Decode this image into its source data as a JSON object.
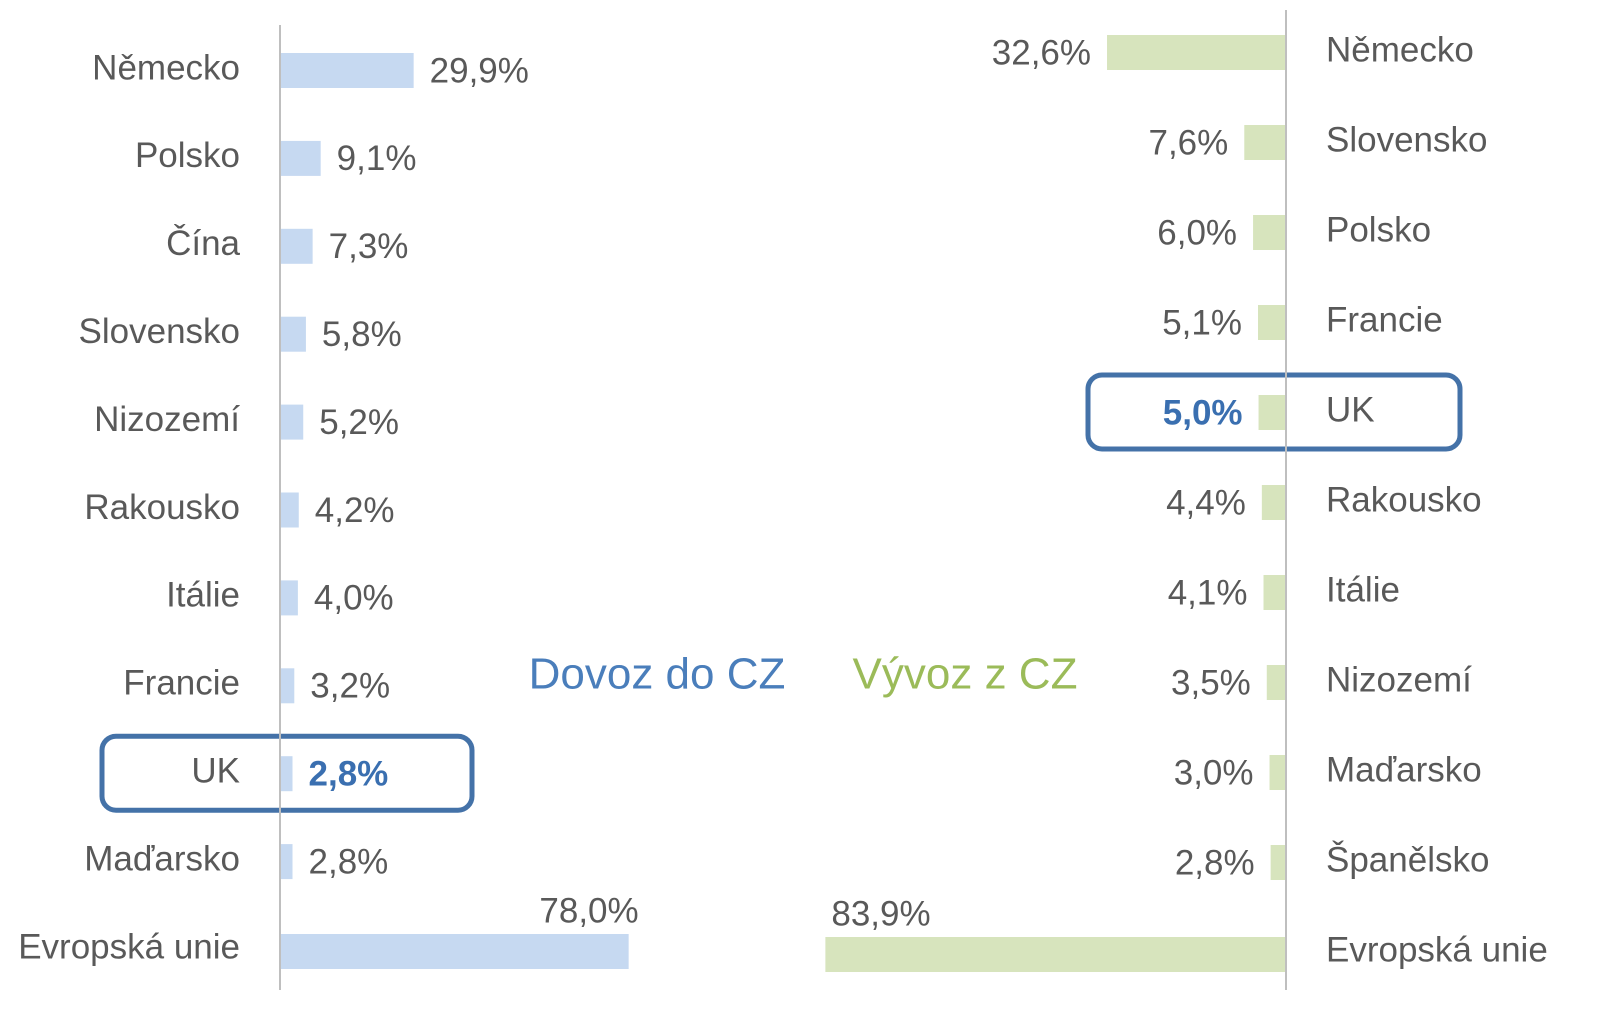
{
  "chart_data": [
    {
      "type": "bar",
      "orientation": "horizontal",
      "title": "Dovoz do CZ",
      "color": "#c6d9f1",
      "title_color": "#4a7ebb",
      "categories": [
        "Německo",
        "Polsko",
        "Čína",
        "Slovensko",
        "Nizozemí",
        "Rakousko",
        "Itálie",
        "Francie",
        "UK",
        "Maďarsko",
        "Evropská unie"
      ],
      "values": [
        29.9,
        9.1,
        7.3,
        5.8,
        5.2,
        4.2,
        4.0,
        3.2,
        2.8,
        2.8,
        78.0
      ],
      "value_labels": [
        "29,9%",
        "9,1%",
        "7,3%",
        "5,8%",
        "5,2%",
        "4,2%",
        "4,0%",
        "3,2%",
        "2,8%",
        "2,8%",
        "78,0%"
      ],
      "xlim": [
        0,
        100
      ],
      "highlight": "UK"
    },
    {
      "type": "bar",
      "orientation": "horizontal",
      "title": "Vývoz z CZ",
      "color": "#d7e4bd",
      "title_color": "#9bbb59",
      "categories": [
        "Německo",
        "Slovensko",
        "Polsko",
        "Francie",
        "UK",
        "Rakousko",
        "Itálie",
        "Nizozemí",
        "Maďarsko",
        "Španělsko",
        "Evropská unie"
      ],
      "values": [
        32.6,
        7.6,
        6.0,
        5.1,
        5.0,
        4.4,
        4.1,
        3.5,
        3.0,
        2.8,
        83.9
      ],
      "value_labels": [
        "32,6%",
        "7,6%",
        "6,0%",
        "5,1%",
        "5,0%",
        "4,4%",
        "4,1%",
        "3,5%",
        "3,0%",
        "2,8%",
        "83,9%"
      ],
      "xlim": [
        0,
        100
      ],
      "reversed": true,
      "highlight": "UK"
    }
  ]
}
